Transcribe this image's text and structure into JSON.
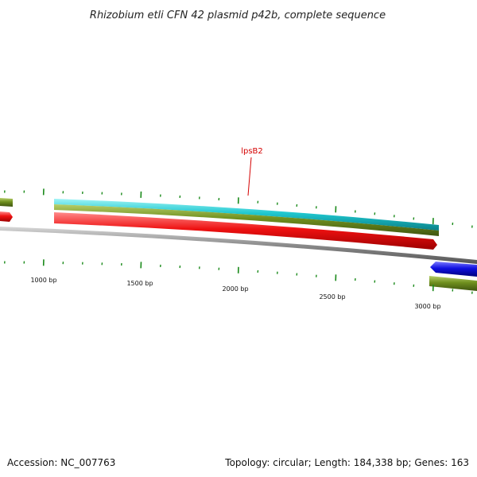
{
  "title": "Rhizobium etli CFN 42 plasmid p42b, complete sequence",
  "footer": {
    "accession": "Accession: NC_007763",
    "summary": "Topology: circular; Length: 184,338 bp; Genes: 163"
  },
  "scale_labels": [
    "1000 bp",
    "1500 bp",
    "2000 bp",
    "2500 bp",
    "3000 bp"
  ],
  "gene_label": "lpsB2",
  "colors": {
    "backbone": "#8a8a8a",
    "cyan_track": "#20c8d0",
    "olive_track": "#6f8f1e",
    "red_track": "#ee1111",
    "blue_feature": "#1010e0",
    "tick": "#1a8a1a",
    "label": "#d40000"
  }
}
